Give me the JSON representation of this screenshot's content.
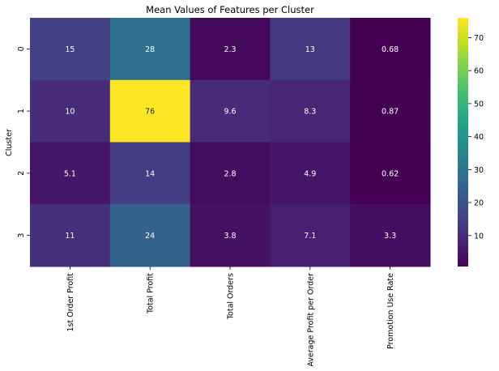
{
  "chart_data": {
    "type": "heatmap",
    "title": "Mean Values of Features per Cluster",
    "xlabel": "",
    "ylabel": "Cluster",
    "x_categories": [
      "1st Order Profit",
      "Total Profit",
      "Total Orders",
      "Average Profit per Order",
      "Promotion Use Rate"
    ],
    "y_categories": [
      "0",
      "1",
      "2",
      "3"
    ],
    "values": [
      [
        15,
        28,
        2.3,
        13,
        0.68
      ],
      [
        10,
        76,
        9.6,
        8.3,
        0.87
      ],
      [
        5.1,
        14,
        2.8,
        4.9,
        0.62
      ],
      [
        11,
        24,
        3.8,
        7.1,
        3.3
      ]
    ],
    "value_labels": [
      [
        "15",
        "28",
        "2.3",
        "13",
        "0.68"
      ],
      [
        "10",
        "76",
        "9.6",
        "8.3",
        "0.87"
      ],
      [
        "5.1",
        "14",
        "2.8",
        "4.9",
        "0.62"
      ],
      [
        "11",
        "24",
        "3.8",
        "7.1",
        "3.3"
      ]
    ],
    "colormap": "viridis",
    "colorbar_range": [
      0.62,
      76
    ],
    "colorbar_ticks": [
      "10",
      "20",
      "30",
      "40",
      "50",
      "60",
      "70"
    ],
    "colorbar_tick_values": [
      10,
      20,
      30,
      40,
      50,
      60,
      70
    ],
    "annotation_colors": {
      "light": "#ffffff",
      "dark": "#262626"
    }
  }
}
